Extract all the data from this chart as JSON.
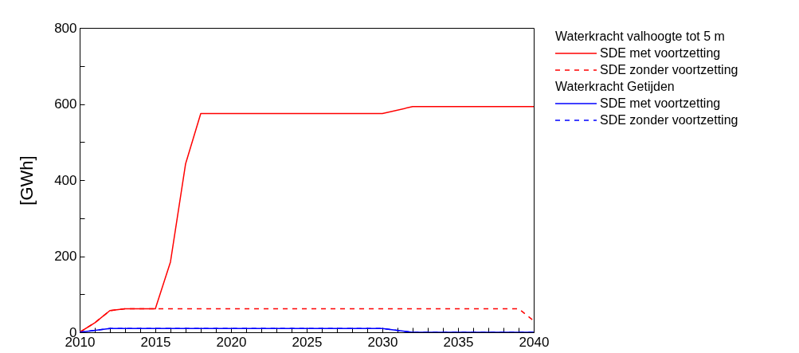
{
  "chart_data": {
    "type": "line",
    "ylabel": "[GWh]",
    "xlim": [
      2010,
      2040
    ],
    "ylim": [
      0,
      800
    ],
    "xticks": [
      2010,
      {
        "value": 2011,
        "label": null
      },
      {
        "value": 2012,
        "label": null
      },
      {
        "value": 2013,
        "label": null
      },
      {
        "value": 2014,
        "label": null
      },
      2015,
      {
        "value": 2016,
        "label": null
      },
      {
        "value": 2017,
        "label": null
      },
      {
        "value": 2018,
        "label": null
      },
      {
        "value": 2019,
        "label": null
      },
      2020,
      {
        "value": 2021,
        "label": null
      },
      {
        "value": 2022,
        "label": null
      },
      {
        "value": 2023,
        "label": null
      },
      {
        "value": 2024,
        "label": null
      },
      2025,
      {
        "value": 2026,
        "label": null
      },
      {
        "value": 2027,
        "label": null
      },
      {
        "value": 2028,
        "label": null
      },
      {
        "value": 2029,
        "label": null
      },
      2030,
      {
        "value": 2031,
        "label": null
      },
      {
        "value": 2032,
        "label": null
      },
      {
        "value": 2033,
        "label": null
      },
      {
        "value": 2034,
        "label": null
      },
      2035,
      {
        "value": 2036,
        "label": null
      },
      {
        "value": 2037,
        "label": null
      },
      {
        "value": 2038,
        "label": null
      },
      {
        "value": 2039,
        "label": null
      },
      2040
    ],
    "yticks": [
      0,
      {
        "value": 100,
        "label": null
      },
      200,
      {
        "value": 300,
        "label": null
      },
      400,
      {
        "value": 500,
        "label": null
      },
      600,
      {
        "value": 700,
        "label": null
      },
      800
    ],
    "grid": false,
    "legend": "right",
    "marker": "none",
    "annotations": [
      "Waterkracht valhoogte tot 5 m",
      "Waterkracht Getijden"
    ],
    "series": [
      {
        "name": "SDE met voortzetting",
        "color": "#ff0000",
        "line_style": "solid",
        "x": [
          2010,
          2011,
          2012,
          2013,
          2015,
          2016,
          2017,
          2018,
          2030,
          2032,
          2040
        ],
        "values": [
          0,
          25,
          57,
          62,
          62,
          185,
          443,
          575,
          575,
          593,
          593
        ]
      },
      {
        "name": "SDE zonder voortzetting",
        "color": "#ff0000",
        "line_style": "dashed",
        "x": [
          2010,
          2011,
          2012,
          2013,
          2015,
          2039,
          2040
        ],
        "values": [
          0,
          25,
          57,
          62,
          62,
          62,
          30
        ]
      },
      {
        "name": "SDE met voortzetting",
        "color": "#0000ff",
        "line_style": "solid",
        "x": [
          2010,
          2012,
          2030,
          2032,
          2040
        ],
        "values": [
          0,
          10,
          10,
          0,
          0
        ]
      },
      {
        "name": "SDE zonder voortzetting",
        "color": "#0000ff",
        "line_style": "dashed",
        "x": [
          2010,
          2012,
          2030,
          2032,
          2040
        ],
        "values": [
          0,
          10,
          10,
          0,
          0
        ]
      }
    ]
  }
}
